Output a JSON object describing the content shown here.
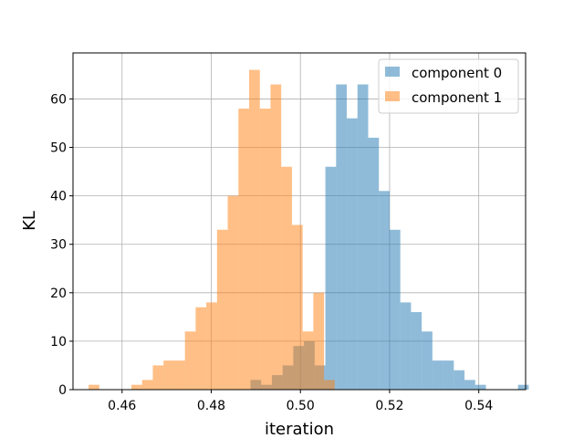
{
  "chart_data": {
    "type": "histogram",
    "xlabel": "iteration",
    "ylabel": "KL",
    "xlim": [
      0.449,
      0.5505
    ],
    "ylim": [
      0,
      69.5
    ],
    "xticks": [
      0.46,
      0.48,
      0.5,
      0.52,
      0.54
    ],
    "xtick_labels": [
      "0.46",
      "0.48",
      "0.50",
      "0.52",
      "0.54"
    ],
    "yticks": [
      0,
      10,
      20,
      30,
      40,
      50,
      60
    ],
    "ytick_labels": [
      "0",
      "10",
      "20",
      "30",
      "40",
      "50",
      "60"
    ],
    "grid": true,
    "legend_position": "top-right",
    "series": [
      {
        "name": "component 0",
        "color": "#1f77b4",
        "alpha": 0.5,
        "bin_start": 0.4888,
        "bin_width": 0.0024,
        "counts": [
          2,
          1,
          3,
          5,
          9,
          10,
          5,
          46,
          63,
          56,
          63,
          52,
          41,
          33,
          18,
          16,
          12,
          6,
          6,
          4,
          2,
          1,
          0,
          0,
          0,
          1
        ]
      },
      {
        "name": "component 1",
        "color": "#ff7f0e",
        "alpha": 0.5,
        "bin_start": 0.4525,
        "bin_width": 0.0024,
        "counts": [
          1,
          0,
          0,
          0,
          1,
          2,
          5,
          6,
          6,
          12,
          17,
          18,
          33,
          40,
          58,
          66,
          58,
          63,
          46,
          34,
          12,
          20,
          2
        ]
      }
    ]
  }
}
